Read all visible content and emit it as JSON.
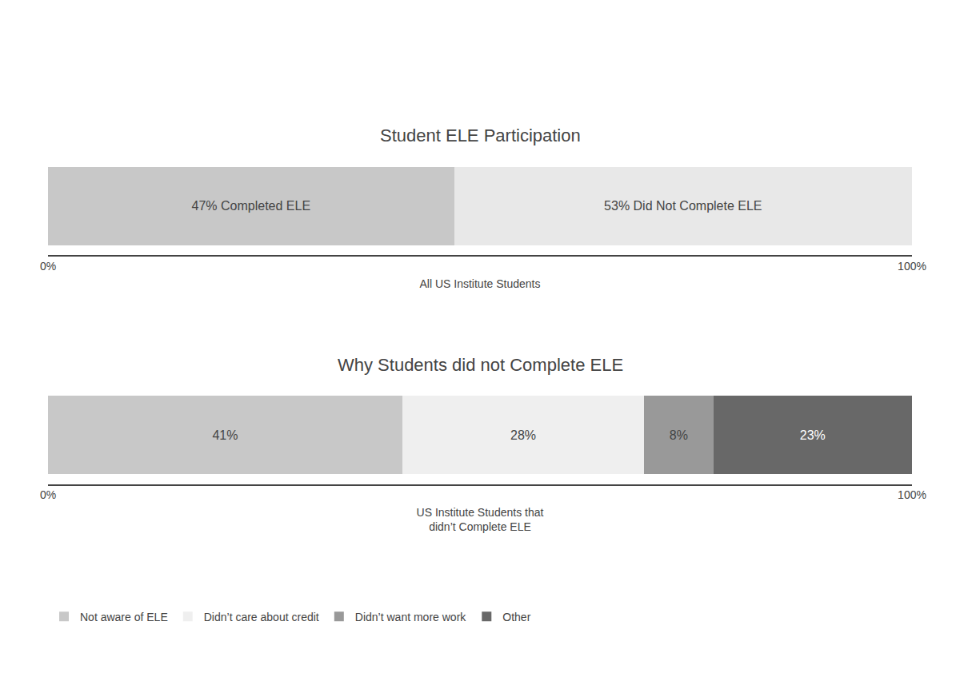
{
  "chart_data": [
    {
      "type": "bar",
      "orientation": "horizontal",
      "stacked": true,
      "title": "Student ELE Participation",
      "x_label": "All US Institute Students",
      "categories": [
        null
      ],
      "series": [
        {
          "color": "#c8c8c8",
          "values": [
            47
          ],
          "value_labels": [
            "47% Completed ELE"
          ]
        },
        {
          "color": "#e8e8e8",
          "values": [
            53
          ],
          "value_labels": [
            "53% Did Not Complete ELE"
          ]
        }
      ],
      "xlim": [
        0,
        100
      ],
      "xticks": [
        {
          "value": 0,
          "label": "0%"
        },
        {
          "value": 100,
          "label": "100%"
        }
      ],
      "grid": false,
      "data_labels": true,
      "tick_labels": "x"
    },
    {
      "type": "bar",
      "orientation": "horizontal",
      "stacked": true,
      "title": "Why Students did not Complete ELE",
      "x_label": "US Institute Students that\ndidn’t Complete ELE",
      "categories": [
        null
      ],
      "series": [
        {
          "name": "Not aware of ELE",
          "color": "#c8c8c8",
          "values": [
            41
          ],
          "value_labels": [
            "41%"
          ]
        },
        {
          "name": "Didn’t care about credit",
          "color": "#efefef",
          "values": [
            28
          ],
          "value_labels": [
            "28%"
          ]
        },
        {
          "name": "Didn’t want more work",
          "color": "#999999",
          "values": [
            8
          ],
          "value_labels": [
            "8%"
          ]
        },
        {
          "name": "Other",
          "color": "#686868",
          "values": [
            23
          ],
          "value_labels": [
            "23%"
          ]
        }
      ],
      "xlim": [
        0,
        100
      ],
      "xticks": [
        {
          "value": 0,
          "label": "0%"
        },
        {
          "value": 100,
          "label": "100%"
        }
      ],
      "grid": false,
      "data_labels": true,
      "tick_labels": "x",
      "legend": "lower left"
    }
  ]
}
